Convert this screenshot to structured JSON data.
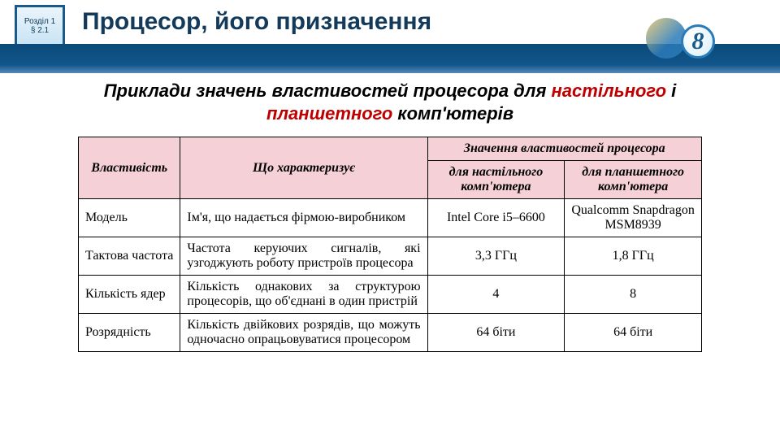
{
  "header": {
    "chapter_line1": "Розділ 1",
    "chapter_line2": "§ 2.1",
    "title": "Процесор, його призначення",
    "grade": "8"
  },
  "subtitle": {
    "prefix": "Приклади значень властивостей процесора для ",
    "red1": "настільного",
    "mid": " і ",
    "red2": "планшетного",
    "suffix": " комп'ютерів"
  },
  "table": {
    "head": {
      "c1": "Власти­вість",
      "c2": "Що характеризує",
      "c3_merged": "Значення властивостей процесора",
      "c3a": "для настільного комп'ютера",
      "c3b": "для планшетно­го комп'ютера"
    },
    "rows": [
      {
        "prop": "Модель",
        "desc": "Ім'я, що надається фірмою-виробником",
        "v1": "Intel Core i5–6600",
        "v2": "Qualcomm Snapdragon MSM8939"
      },
      {
        "prop": "Тактова частота",
        "desc": "Частота керуючих сигналів, які узгоджують роботу при­строїв процесора",
        "v1": "3,3 ГГц",
        "v2": "1,8 ГГц"
      },
      {
        "prop": "Кількість ядер",
        "desc": "Кількість однакових за структурою процесорів, що об'єднані в один пристрій",
        "v1": "4",
        "v2": "8"
      },
      {
        "prop": "Розряд­ність",
        "desc": "Кількість двійкових роз­рядів, що можуть одночасно опрацьовуватися процесором",
        "v1": "64 біти",
        "v2": "64 біти"
      }
    ]
  }
}
